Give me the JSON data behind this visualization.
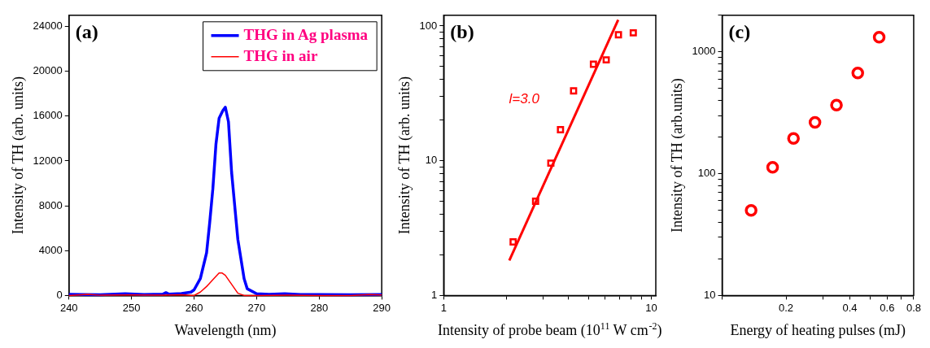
{
  "chart_data": [
    {
      "type": "line",
      "xlabel": "Wavelength (nm)",
      "ylabel": "Intensity of TH (arb. units)",
      "xlim": [
        240,
        290
      ],
      "ylim": [
        0,
        25000
      ],
      "xticks": [
        240,
        250,
        260,
        270,
        280,
        290
      ],
      "yticks": [
        0,
        4000,
        8000,
        12000,
        16000,
        20000,
        24000
      ],
      "legend": "top right",
      "grid": false,
      "annotations": [
        "(a)"
      ],
      "series": [
        {
          "name": "THG in Ag plasma",
          "color": "#0000ff",
          "x": [
            240,
            242,
            245,
            249,
            252,
            255,
            255.5,
            256,
            258,
            259.5,
            260,
            261,
            262,
            262.5,
            263,
            263.5,
            264,
            264.6,
            265,
            265.5,
            266,
            266.5,
            267,
            268,
            268.5,
            270,
            272,
            274.5,
            277,
            280,
            285,
            290
          ],
          "values": [
            100,
            80,
            60,
            150,
            80,
            120,
            250,
            120,
            180,
            300,
            500,
            1500,
            3800,
            6500,
            9500,
            13500,
            15800,
            16500,
            16800,
            15500,
            11000,
            8000,
            5000,
            1500,
            600,
            150,
            100,
            150,
            90,
            80,
            60,
            80
          ]
        },
        {
          "name": "THG in air",
          "color": "#ff0000",
          "x": [
            240,
            243,
            245,
            250,
            255,
            258,
            260,
            261,
            262,
            263,
            264,
            264.5,
            265,
            266,
            267,
            268,
            270,
            275,
            280,
            285,
            288,
            290
          ],
          "values": [
            0,
            100,
            20,
            50,
            30,
            60,
            0,
            300,
            800,
            1400,
            2000,
            2000,
            1800,
            1000,
            200,
            0,
            0,
            30,
            0,
            0,
            80,
            50
          ]
        }
      ]
    },
    {
      "type": "scatter",
      "xlabel": "Intensity of probe beam (10$^{11}$ W cm$^{-2}$)",
      "ylabel": "Intensity of TH (arb. units)",
      "log": "xy",
      "xlim": [
        1,
        10.5
      ],
      "ylim": [
        1,
        120
      ],
      "grid": false,
      "xticks": [
        1,
        {
          "value": 2,
          "label": null
        },
        {
          "value": 3,
          "label": null
        },
        {
          "value": 4,
          "label": null
        },
        {
          "value": 5,
          "label": null
        },
        {
          "value": 6,
          "label": null
        },
        {
          "value": 7,
          "label": null
        },
        {
          "value": 8,
          "label": null
        },
        {
          "value": 9,
          "label": null
        },
        10
      ],
      "yticks": [
        1,
        {
          "value": 2,
          "label": null
        },
        {
          "value": 3,
          "label": null
        },
        {
          "value": 4,
          "label": null
        },
        {
          "value": 5,
          "label": null
        },
        {
          "value": 6,
          "label": null
        },
        {
          "value": 7,
          "label": null
        },
        {
          "value": 8,
          "label": null
        },
        {
          "value": 9,
          "label": null
        },
        10,
        {
          "value": 20,
          "label": null
        },
        {
          "value": 30,
          "label": null
        },
        {
          "value": 40,
          "label": null
        },
        {
          "value": 50,
          "label": null
        },
        {
          "value": 60,
          "label": null
        },
        {
          "value": 70,
          "label": null
        },
        {
          "value": 80,
          "label": null
        },
        {
          "value": 90,
          "label": null
        },
        100
      ],
      "annotations": [
        "(b)",
        "l=3.0"
      ],
      "series": [
        {
          "color": "#ff0000",
          "marker": "square",
          "x": [
            2.16,
            2.77,
            3.28,
            3.65,
            4.22,
            5.26,
            6.06,
            6.94,
            8.18
          ],
          "values": [
            2.5,
            5,
            9.6,
            17,
            33,
            52,
            56,
            86,
            89
          ]
        },
        {
          "type": "line",
          "marker": "none",
          "color": "#ff0000",
          "x": [
            2.07,
            6.92
          ],
          "values": [
            1.82,
            111
          ]
        }
      ]
    },
    {
      "type": "scatter",
      "xlabel": "Energy of heating pulses (mJ)",
      "ylabel": "Intensity of TH (arb.units)",
      "log": "xy",
      "xlim": [
        0.1,
        0.8
      ],
      "ylim": [
        10,
        2000
      ],
      "marker": "circle",
      "grid": false,
      "xticks": [
        {
          "value": 0.1,
          "label": null
        },
        {
          "value": 0.2,
          "label": "0.2"
        },
        {
          "value": 0.3,
          "label": null
        },
        {
          "value": 0.4,
          "label": "0.4"
        },
        {
          "value": 0.5,
          "label": null
        },
        {
          "value": 0.6,
          "label": "0.6"
        },
        {
          "value": 0.7,
          "label": null
        },
        {
          "value": 0.8,
          "label": "0.8"
        }
      ],
      "yticks": [
        10,
        {
          "value": 20,
          "label": null
        },
        {
          "value": 30,
          "label": null
        },
        {
          "value": 40,
          "label": null
        },
        {
          "value": 50,
          "label": null
        },
        {
          "value": 60,
          "label": null
        },
        {
          "value": 70,
          "label": null
        },
        {
          "value": 80,
          "label": null
        },
        {
          "value": 90,
          "label": null
        },
        100,
        {
          "value": 200,
          "label": null
        },
        {
          "value": 300,
          "label": null
        },
        {
          "value": 400,
          "label": null
        },
        {
          "value": 500,
          "label": null
        },
        {
          "value": 600,
          "label": null
        },
        {
          "value": 700,
          "label": null
        },
        {
          "value": 800,
          "label": null
        },
        {
          "value": 900,
          "label": null
        },
        1000,
        {
          "value": 2000,
          "label": null
        }
      ],
      "annotations": [
        "(c)"
      ],
      "series": [
        {
          "color": "#ff0000",
          "x": [
            0.137,
            0.173,
            0.217,
            0.274,
            0.346,
            0.436,
            0.55
          ],
          "values": [
            50,
            113,
            195,
            264,
            366,
            672,
            1320
          ]
        }
      ]
    }
  ]
}
